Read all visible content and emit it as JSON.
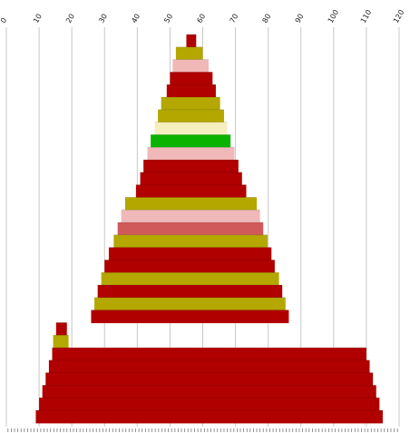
{
  "chart_data": {
    "type": "area",
    "orientation": "vertical",
    "xlim": [
      0,
      120
    ],
    "x_ticks": [
      0,
      10,
      20,
      30,
      40,
      50,
      60,
      70,
      80,
      90,
      100,
      110,
      120
    ],
    "x_tick_labels": [
      "0",
      "10",
      "20",
      "30",
      "40",
      "50",
      "60",
      "70",
      "80",
      "90",
      "100",
      "110",
      "120"
    ],
    "grid": true,
    "title": "",
    "xlabel": "",
    "ylabel": "",
    "bottom_tick_count": 120,
    "layers": [
      {
        "index": 1,
        "left": 55.0,
        "right": 58.0,
        "color": "#b00000"
      },
      {
        "index": 2,
        "left": 51.8,
        "right": 60.0,
        "color": "#b3a700"
      },
      {
        "index": 3,
        "left": 50.8,
        "right": 61.8,
        "color": "#f0b8b8"
      },
      {
        "index": 4,
        "left": 50.0,
        "right": 63.0,
        "color": "#b00000"
      },
      {
        "index": 5,
        "left": 49.0,
        "right": 64.0,
        "color": "#b00000"
      },
      {
        "index": 6,
        "left": 47.3,
        "right": 65.3,
        "color": "#b3a700"
      },
      {
        "index": 7,
        "left": 46.3,
        "right": 66.5,
        "color": "#b3a700"
      },
      {
        "index": 8,
        "left": 45.3,
        "right": 67.5,
        "color": "#f5efc0"
      },
      {
        "index": 9,
        "left": 44.1,
        "right": 68.5,
        "color": "#0ab300"
      },
      {
        "index": 10,
        "left": 43.1,
        "right": 69.7,
        "color": "#f0b8b8"
      },
      {
        "index": 11,
        "left": 41.9,
        "right": 70.9,
        "color": "#b00000"
      },
      {
        "index": 12,
        "left": 40.9,
        "right": 72.0,
        "color": "#b00000"
      },
      {
        "index": 13,
        "left": 39.6,
        "right": 73.3,
        "color": "#b00000"
      },
      {
        "index": 14,
        "left": 36.3,
        "right": 76.5,
        "color": "#b3a700"
      },
      {
        "index": 15,
        "left": 35.1,
        "right": 77.5,
        "color": "#f0b8b8"
      },
      {
        "index": 16,
        "left": 34.0,
        "right": 78.5,
        "color": "#d05a5a"
      },
      {
        "index": 17,
        "left": 32.8,
        "right": 79.8,
        "color": "#b3a700"
      },
      {
        "index": 18,
        "left": 31.3,
        "right": 81.0,
        "color": "#b00000"
      },
      {
        "index": 19,
        "left": 30.0,
        "right": 82.0,
        "color": "#b00000"
      },
      {
        "index": 20,
        "left": 29.0,
        "right": 83.3,
        "color": "#b3a700"
      },
      {
        "index": 21,
        "left": 27.9,
        "right": 84.3,
        "color": "#b00000"
      },
      {
        "index": 22,
        "left": 26.9,
        "right": 85.3,
        "color": "#b3a700"
      },
      {
        "index": 23,
        "left": 25.9,
        "right": 86.3,
        "color": "#b00000"
      },
      {
        "index": 24,
        "left": 15.2,
        "right": 18.5,
        "color": "#b00000"
      },
      {
        "index": 25,
        "left": 14.3,
        "right": 19.0,
        "color": "#b3a700"
      },
      {
        "index": 26,
        "left": 14.0,
        "right": 110.0,
        "color": "#b00000"
      },
      {
        "index": 27,
        "left": 13.0,
        "right": 111.0,
        "color": "#b00000"
      },
      {
        "index": 28,
        "left": 12.0,
        "right": 112.0,
        "color": "#b00000"
      },
      {
        "index": 29,
        "left": 11.0,
        "right": 113.0,
        "color": "#b00000"
      },
      {
        "index": 30,
        "left": 10.0,
        "right": 114.0,
        "color": "#b00000"
      },
      {
        "index": 31,
        "left": 9.0,
        "right": 115.0,
        "color": "#b00000"
      }
    ]
  }
}
